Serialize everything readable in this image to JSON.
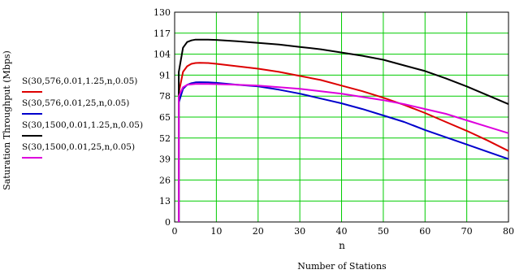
{
  "chart_data": {
    "type": "line",
    "title": "",
    "xlabel": "n",
    "xlabel_sub": "Number of Stations",
    "ylabel": "Saturation Throughput (Mbps)",
    "xlim": [
      0,
      80
    ],
    "ylim": [
      0,
      130
    ],
    "x_ticks": [
      0,
      10,
      20,
      30,
      40,
      50,
      60,
      70,
      80
    ],
    "y_ticks": [
      0,
      13,
      26,
      39,
      52,
      65,
      78,
      91,
      104,
      117,
      130
    ],
    "grid": true,
    "grid_color": "#00cc00",
    "legend_position": "left",
    "x": [
      1,
      2,
      3,
      4,
      5,
      6,
      8,
      10,
      15,
      20,
      25,
      30,
      35,
      40,
      45,
      50,
      55,
      60,
      65,
      70,
      75,
      80
    ],
    "series": [
      {
        "name": "S(30,576,0.01,1.25,n,0.05)",
        "color": "#dd0000",
        "values": [
          80,
          93,
          96.5,
          98,
          98.5,
          98.6,
          98.5,
          98,
          96.5,
          95,
          93,
          90.5,
          88,
          84.5,
          81,
          77,
          72.5,
          67.5,
          62,
          56.5,
          50.5,
          44
        ]
      },
      {
        "name": "S(30,576,0.01,25,n,0.05)",
        "color": "#0000cc",
        "values": [
          74,
          82.5,
          85,
          86,
          86.5,
          86.6,
          86.5,
          86.2,
          85,
          84,
          82,
          79.5,
          76.5,
          73.5,
          70,
          66,
          62,
          57,
          52.5,
          48,
          43.5,
          39
        ]
      },
      {
        "name": "S(30,1500,0.01,1.25,n,0.05)",
        "color": "#000000",
        "values": [
          93,
          108,
          111.5,
          112.5,
          113,
          113,
          113,
          112.8,
          112,
          111,
          110,
          108.5,
          107,
          105,
          103,
          100.5,
          97,
          93.5,
          89,
          84,
          78.5,
          73
        ]
      },
      {
        "name": "S(30,1500,0.01,25,n,0.05)",
        "color": "#dd00dd",
        "values": [
          78,
          83.5,
          85,
          85.3,
          85.5,
          85.5,
          85.5,
          85.4,
          85,
          84.5,
          83.5,
          82.5,
          81,
          79.5,
          77.5,
          75.5,
          73,
          70,
          67,
          63,
          59,
          55
        ]
      }
    ]
  }
}
